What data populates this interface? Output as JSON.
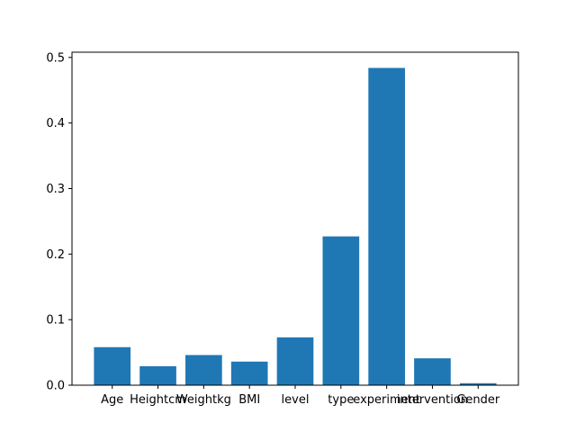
{
  "chart_data": {
    "type": "bar",
    "categories": [
      "Age",
      "Heightcm",
      "Weightkg",
      "BMI",
      "level",
      "type",
      "experiment",
      "intervention",
      "Gender"
    ],
    "values": [
      0.058,
      0.029,
      0.046,
      0.036,
      0.073,
      0.227,
      0.484,
      0.041,
      0.003
    ],
    "title": "",
    "xlabel": "",
    "ylabel": "",
    "ylim": [
      0,
      0.508
    ],
    "yticks": [
      0.0,
      0.1,
      0.2,
      0.3,
      0.4,
      0.5
    ],
    "ytick_labels": [
      "0.0",
      "0.1",
      "0.2",
      "0.3",
      "0.4",
      "0.5"
    ],
    "bar_color": "#1f77b4",
    "grid": false,
    "legend": "none"
  }
}
